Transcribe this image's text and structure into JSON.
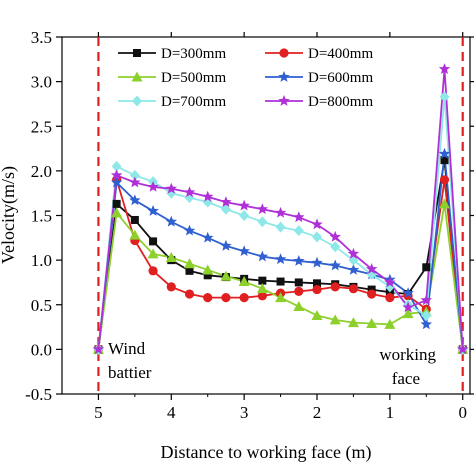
{
  "chart_data": {
    "type": "line",
    "title": "",
    "xlabel": "Distance to working face (m)",
    "ylabel": "Velocity(m/s)",
    "xlim": [
      5.5,
      -0.1
    ],
    "ylim": [
      -0.5,
      3.5
    ],
    "x_axis_reversed": true,
    "xticks": [
      5,
      4,
      3,
      2,
      1,
      0
    ],
    "xtick_labels": [
      "5",
      "4",
      "3",
      "2",
      "1",
      "0"
    ],
    "yticks": [
      -0.5,
      0.0,
      0.5,
      1.0,
      1.5,
      2.0,
      2.5,
      3.0,
      3.5
    ],
    "ytick_labels": [
      "-0.5",
      "0.0",
      "0.5",
      "1.0",
      "1.5",
      "2.0",
      "2.5",
      "3.0",
      "3.5"
    ],
    "grid": false,
    "legend_position": "top",
    "reference_lines": [
      {
        "x": 5,
        "color": "#e02020",
        "style": "dashed"
      },
      {
        "x": 0,
        "color": "#e02020",
        "style": "dashed"
      }
    ],
    "annotations": [
      {
        "lines": [
          "Wind",
          "battier"
        ],
        "anchor": "left"
      },
      {
        "lines": [
          "working",
          "face"
        ],
        "anchor": "right"
      }
    ],
    "series": [
      {
        "name": "D=300mm",
        "color": "#111111",
        "marker": "square",
        "x": [
          5,
          4.75,
          4.5,
          4.25,
          4,
          3.75,
          3.5,
          3.25,
          3,
          2.75,
          2.5,
          2.25,
          2,
          1.75,
          1.5,
          1.25,
          1,
          0.75,
          0.5,
          0.25,
          0
        ],
        "y": [
          0,
          1.63,
          1.45,
          1.21,
          1.0,
          0.88,
          0.83,
          0.81,
          0.79,
          0.77,
          0.76,
          0.75,
          0.74,
          0.73,
          0.7,
          0.67,
          0.64,
          0.62,
          0.92,
          2.12,
          0
        ]
      },
      {
        "name": "D=400mm",
        "color": "#e02020",
        "marker": "circle",
        "x": [
          5,
          4.75,
          4.5,
          4.25,
          4,
          3.75,
          3.5,
          3.25,
          3,
          2.75,
          2.5,
          2.25,
          2,
          1.75,
          1.5,
          1.25,
          1,
          0.75,
          0.5,
          0.25,
          0
        ],
        "y": [
          0,
          1.9,
          1.22,
          0.88,
          0.7,
          0.62,
          0.58,
          0.58,
          0.58,
          0.6,
          0.63,
          0.65,
          0.67,
          0.7,
          0.68,
          0.62,
          0.58,
          0.6,
          0.45,
          1.9,
          0
        ]
      },
      {
        "name": "D=500mm",
        "color": "#8dd02c",
        "marker": "triangle-up",
        "x": [
          5,
          4.75,
          4.5,
          4.25,
          4,
          3.75,
          3.5,
          3.25,
          3,
          2.75,
          2.5,
          2.25,
          2,
          1.75,
          1.5,
          1.25,
          1,
          0.75,
          0.5,
          0.25,
          0
        ],
        "y": [
          0,
          1.53,
          1.28,
          1.07,
          1.03,
          0.96,
          0.89,
          0.82,
          0.76,
          0.68,
          0.58,
          0.48,
          0.38,
          0.33,
          0.3,
          0.29,
          0.28,
          0.4,
          0.42,
          1.63,
          0
        ]
      },
      {
        "name": "D=600mm",
        "color": "#2f5fd0",
        "marker": "star",
        "x": [
          5,
          4.75,
          4.5,
          4.25,
          4,
          3.75,
          3.5,
          3.25,
          3,
          2.75,
          2.5,
          2.25,
          2,
          1.75,
          1.5,
          1.25,
          1,
          0.75,
          0.5,
          0.25,
          0
        ],
        "y": [
          0,
          1.87,
          1.67,
          1.55,
          1.43,
          1.33,
          1.25,
          1.16,
          1.1,
          1.04,
          1.01,
          0.99,
          0.97,
          0.94,
          0.89,
          0.84,
          0.78,
          0.63,
          0.28,
          2.19,
          0
        ]
      },
      {
        "name": "D=700mm",
        "color": "#8ee8e8",
        "marker": "diamond",
        "x": [
          5,
          4.75,
          4.5,
          4.25,
          4,
          3.75,
          3.5,
          3.25,
          3,
          2.75,
          2.5,
          2.25,
          2,
          1.75,
          1.5,
          1.25,
          1,
          0.75,
          0.5,
          0.25,
          0
        ],
        "y": [
          0,
          2.05,
          1.95,
          1.88,
          1.75,
          1.7,
          1.65,
          1.57,
          1.5,
          1.43,
          1.37,
          1.33,
          1.26,
          1.15,
          1.0,
          0.84,
          0.7,
          0.5,
          0.38,
          2.83,
          0
        ]
      },
      {
        "name": "D=800mm",
        "color": "#b030d8",
        "marker": "star",
        "x": [
          5,
          4.75,
          4.5,
          4.25,
          4,
          3.75,
          3.5,
          3.25,
          3,
          2.75,
          2.5,
          2.25,
          2,
          1.75,
          1.5,
          1.25,
          1,
          0.75,
          0.5,
          0.25,
          0
        ],
        "y": [
          0,
          1.95,
          1.87,
          1.82,
          1.8,
          1.76,
          1.71,
          1.65,
          1.61,
          1.57,
          1.53,
          1.48,
          1.4,
          1.26,
          1.07,
          0.9,
          0.75,
          0.47,
          0.55,
          3.14,
          0
        ]
      }
    ]
  }
}
